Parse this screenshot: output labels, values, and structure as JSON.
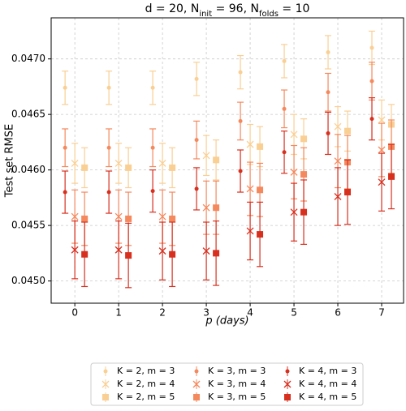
{
  "chart_data": {
    "type": "errorbar",
    "title": [
      "d = 20, N",
      "init",
      " = 96, N",
      "folds",
      " = 10"
    ],
    "xlabel": "p (days)",
    "ylabel": "Test set RMSE",
    "x": [
      0,
      1,
      2,
      3,
      4,
      5,
      6,
      7
    ],
    "xlim": [
      -0.54,
      7.5
    ],
    "ylim": [
      0.0448,
      0.04737
    ],
    "xticks": [
      0,
      1,
      2,
      3,
      4,
      5,
      6,
      7
    ],
    "yticks": [
      {
        "value": 0.045,
        "label": "0.0450"
      },
      {
        "value": 0.0455,
        "label": "0.0455"
      },
      {
        "value": 0.046,
        "label": "0.0460"
      },
      {
        "value": 0.0465,
        "label": "0.0465"
      },
      {
        "value": 0.047,
        "label": "0.0470"
      }
    ],
    "grid": true,
    "legend": "bottom",
    "series": [
      {
        "name": "K = 2, m = 3",
        "color": "#f9cf94",
        "marker": "o",
        "values": [
          0.04674,
          0.04674,
          0.04674,
          0.04682,
          0.04688,
          0.04698,
          0.04706,
          0.0471
        ],
        "errors": [
          0.00015,
          0.00015,
          0.00015,
          0.00015,
          0.00015,
          0.00015,
          0.00015,
          0.00015
        ]
      },
      {
        "name": "K = 2, m = 4",
        "color": "#f9cf94",
        "marker": "x",
        "values": [
          0.04606,
          0.04606,
          0.04606,
          0.04613,
          0.04623,
          0.04632,
          0.04639,
          0.04645
        ],
        "errors": [
          0.00018,
          0.00018,
          0.00018,
          0.00018,
          0.00018,
          0.00018,
          0.00018,
          0.00018
        ]
      },
      {
        "name": "K = 2, m = 5",
        "color": "#f9cf94",
        "marker": "s",
        "values": [
          0.04602,
          0.04602,
          0.04602,
          0.04609,
          0.04621,
          0.04628,
          0.04635,
          0.04641
        ],
        "errors": [
          0.00018,
          0.00018,
          0.00018,
          0.00018,
          0.00018,
          0.00018,
          0.00018,
          0.00018
        ]
      },
      {
        "name": "K = 3, m = 3",
        "color": "#f4895e",
        "marker": "o",
        "values": [
          0.0462,
          0.0462,
          0.0462,
          0.04627,
          0.04644,
          0.04655,
          0.0467,
          0.0468
        ],
        "errors": [
          0.00017,
          0.00017,
          0.00017,
          0.00017,
          0.00017,
          0.00017,
          0.00017,
          0.00017
        ]
      },
      {
        "name": "K = 3, m = 4",
        "color": "#f4895e",
        "marker": "x",
        "values": [
          0.04558,
          0.04558,
          0.04558,
          0.04566,
          0.04583,
          0.04598,
          0.04608,
          0.04618
        ],
        "errors": [
          0.00024,
          0.00024,
          0.00024,
          0.00024,
          0.00024,
          0.00024,
          0.00024,
          0.00024
        ]
      },
      {
        "name": "K = 3, m = 5",
        "color": "#f4895e",
        "marker": "s",
        "values": [
          0.04556,
          0.04556,
          0.04556,
          0.04566,
          0.04582,
          0.04596,
          0.04607,
          0.04621
        ],
        "errors": [
          0.00024,
          0.00024,
          0.00024,
          0.00024,
          0.00024,
          0.00024,
          0.00024,
          0.00024
        ]
      },
      {
        "name": "K = 4, m = 3",
        "color": "#d7301f",
        "marker": "o",
        "values": [
          0.0458,
          0.0458,
          0.04581,
          0.04583,
          0.04599,
          0.04616,
          0.04633,
          0.04646
        ],
        "errors": [
          0.00019,
          0.00019,
          0.00019,
          0.00019,
          0.00019,
          0.00019,
          0.00019,
          0.00019
        ]
      },
      {
        "name": "K = 4, m = 4",
        "color": "#d7301f",
        "marker": "x",
        "values": [
          0.04528,
          0.04528,
          0.04527,
          0.04527,
          0.04545,
          0.04562,
          0.04576,
          0.04589
        ],
        "errors": [
          0.00026,
          0.00026,
          0.00026,
          0.00026,
          0.00026,
          0.00026,
          0.00026,
          0.00026
        ]
      },
      {
        "name": "K = 4, m = 5",
        "color": "#d7301f",
        "marker": "s",
        "values": [
          0.04524,
          0.04523,
          0.04524,
          0.04525,
          0.04542,
          0.04562,
          0.0458,
          0.04594
        ],
        "errors": [
          0.00029,
          0.00029,
          0.00029,
          0.00029,
          0.00029,
          0.00029,
          0.00029,
          0.00029
        ]
      }
    ]
  }
}
